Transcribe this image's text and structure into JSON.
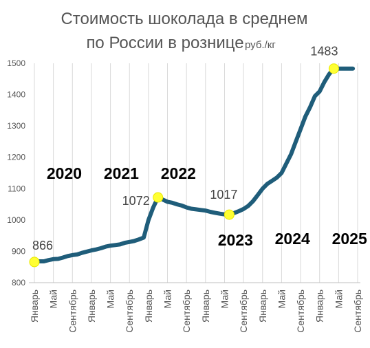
{
  "chart_data": {
    "type": "line",
    "title_line1": "Стоимость шоколада в среднем",
    "title_line2": "по России в рознице",
    "unit": "руб./кг",
    "ylim": [
      800,
      1500
    ],
    "yticks": [
      800,
      900,
      1000,
      1100,
      1200,
      1300,
      1400,
      1500
    ],
    "grid": "vertical",
    "x_tick_labels": [
      "Январь",
      "Май",
      "Сентябрь",
      "Январь",
      "Май",
      "Сентябрь",
      "Январь",
      "Май",
      "Сентябрь",
      "Январь",
      "Май",
      "Сентябрь",
      "Январь",
      "Май",
      "Сентябрь",
      "Январь",
      "Май",
      "Сентябрь"
    ],
    "year_labels": [
      "2020",
      "2021",
      "2022",
      "2023",
      "2024",
      "2025"
    ],
    "x": [
      "2020-01",
      "2020-02",
      "2020-03",
      "2020-04",
      "2020-05",
      "2020-06",
      "2020-07",
      "2020-08",
      "2020-09",
      "2020-10",
      "2020-11",
      "2020-12",
      "2021-01",
      "2021-02",
      "2021-03",
      "2021-04",
      "2021-05",
      "2021-06",
      "2021-07",
      "2021-08",
      "2021-09",
      "2021-10",
      "2021-11",
      "2021-12",
      "2022-01",
      "2022-02",
      "2022-03",
      "2022-04",
      "2022-05",
      "2022-06",
      "2022-07",
      "2022-08",
      "2022-09",
      "2022-10",
      "2022-11",
      "2022-12",
      "2023-01",
      "2023-02",
      "2023-03",
      "2023-04",
      "2023-05",
      "2023-06",
      "2023-07",
      "2023-08",
      "2023-09",
      "2023-10",
      "2023-11",
      "2023-12",
      "2024-01",
      "2024-02",
      "2024-03",
      "2024-04",
      "2024-05",
      "2024-06",
      "2024-07",
      "2024-08",
      "2024-09",
      "2024-10",
      "2024-11",
      "2024-12",
      "2025-01",
      "2025-02",
      "2025-03",
      "2025-04",
      "2025-05",
      "2025-06",
      "2025-07",
      "2025-08",
      "2025-09"
    ],
    "series": [
      {
        "values": [
          866,
          868,
          868,
          872,
          875,
          876,
          880,
          885,
          888,
          890,
          895,
          899,
          903,
          906,
          910,
          915,
          918,
          920,
          922,
          927,
          930,
          933,
          938,
          944,
          1000,
          1040,
          1072,
          1065,
          1058,
          1055,
          1050,
          1046,
          1040,
          1036,
          1034,
          1032,
          1030,
          1026,
          1023,
          1020,
          1018,
          1017,
          1022,
          1028,
          1035,
          1045,
          1060,
          1080,
          1100,
          1115,
          1125,
          1135,
          1150,
          1180,
          1210,
          1250,
          1290,
          1330,
          1360,
          1395,
          1410,
          1440,
          1465,
          1483,
          1483,
          1483,
          1483,
          1483,
          1483
        ]
      }
    ],
    "highlights": [
      {
        "x": "2020-01",
        "label": "866"
      },
      {
        "x": "2022-03",
        "label": "1072"
      },
      {
        "x": "2023-06",
        "label": "1017"
      },
      {
        "x": "2025-04",
        "label": "1483"
      }
    ]
  }
}
